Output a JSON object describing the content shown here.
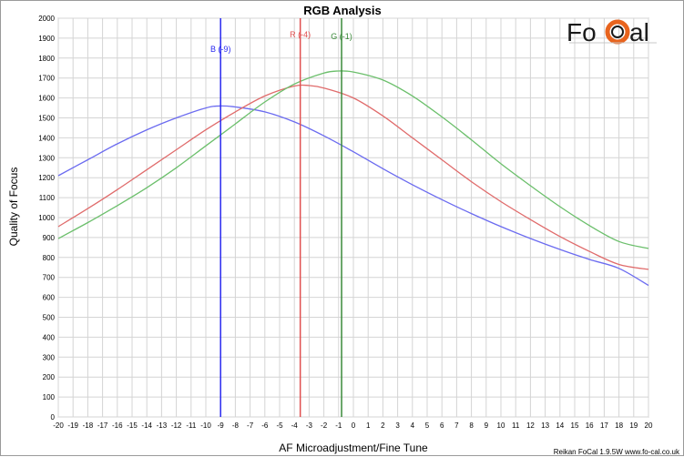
{
  "chart_data": {
    "type": "line",
    "title": "RGB Analysis",
    "xlabel": "AF Microadjustment/Fine Tune",
    "ylabel": "Quality of Focus",
    "xlim": [
      -20,
      20
    ],
    "ylim": [
      0,
      2000
    ],
    "x_ticks": [
      -20,
      -19,
      -18,
      -17,
      -16,
      -15,
      -14,
      -13,
      -12,
      -11,
      -10,
      -9,
      -8,
      -7,
      -6,
      -5,
      -4,
      -3,
      -2,
      -1,
      0,
      1,
      2,
      3,
      4,
      5,
      6,
      7,
      8,
      9,
      10,
      11,
      12,
      13,
      14,
      15,
      16,
      17,
      18,
      19,
      20
    ],
    "y_ticks": [
      0,
      100,
      200,
      300,
      400,
      500,
      600,
      700,
      800,
      900,
      1000,
      1100,
      1200,
      1300,
      1400,
      1500,
      1600,
      1700,
      1800,
      1900,
      2000
    ],
    "grid": true,
    "series": [
      {
        "name": "B",
        "color": "#6b6bf0",
        "x": [
          -20,
          -18,
          -16,
          -14,
          -12,
          -10,
          -9,
          -8,
          -6,
          -4,
          -2,
          0,
          2,
          4,
          6,
          8,
          10,
          12,
          14,
          16,
          18,
          20
        ],
        "y": [
          1210,
          1290,
          1370,
          1440,
          1500,
          1550,
          1560,
          1555,
          1530,
          1480,
          1410,
          1330,
          1245,
          1165,
          1090,
          1020,
          955,
          895,
          840,
          790,
          745,
          660
        ]
      },
      {
        "name": "R",
        "color": "#e06b6b",
        "x": [
          -20,
          -18,
          -16,
          -14,
          -12,
          -10,
          -8,
          -6,
          -4,
          -3,
          -2,
          0,
          2,
          4,
          6,
          8,
          10,
          12,
          14,
          16,
          18,
          20
        ],
        "y": [
          955,
          1045,
          1140,
          1240,
          1340,
          1440,
          1530,
          1610,
          1660,
          1662,
          1650,
          1600,
          1510,
          1400,
          1290,
          1180,
          1080,
          990,
          905,
          830,
          765,
          740
        ]
      },
      {
        "name": "G",
        "color": "#6bbf6b",
        "x": [
          -20,
          -18,
          -16,
          -14,
          -12,
          -10,
          -8,
          -6,
          -4,
          -2,
          -1,
          0,
          2,
          4,
          6,
          8,
          10,
          12,
          14,
          16,
          18,
          20
        ],
        "y": [
          895,
          975,
          1060,
          1150,
          1250,
          1360,
          1470,
          1580,
          1670,
          1725,
          1735,
          1730,
          1690,
          1610,
          1505,
          1390,
          1270,
          1160,
          1055,
          960,
          880,
          845
        ]
      }
    ],
    "markers": [
      {
        "label": "B (-9)",
        "x": -9,
        "color": "#2a2af0"
      },
      {
        "label": "R (-4)",
        "x": -3.6,
        "color": "#e05050"
      },
      {
        "label": "G (-1)",
        "x": -0.8,
        "color": "#3a8a3a"
      }
    ]
  },
  "logo": {
    "text_left": "Fo",
    "text_right": "al",
    "ring_color": "#e8641e"
  },
  "footer": "Reikan FoCal  1.9.5W  www.fo-cal.co.uk"
}
